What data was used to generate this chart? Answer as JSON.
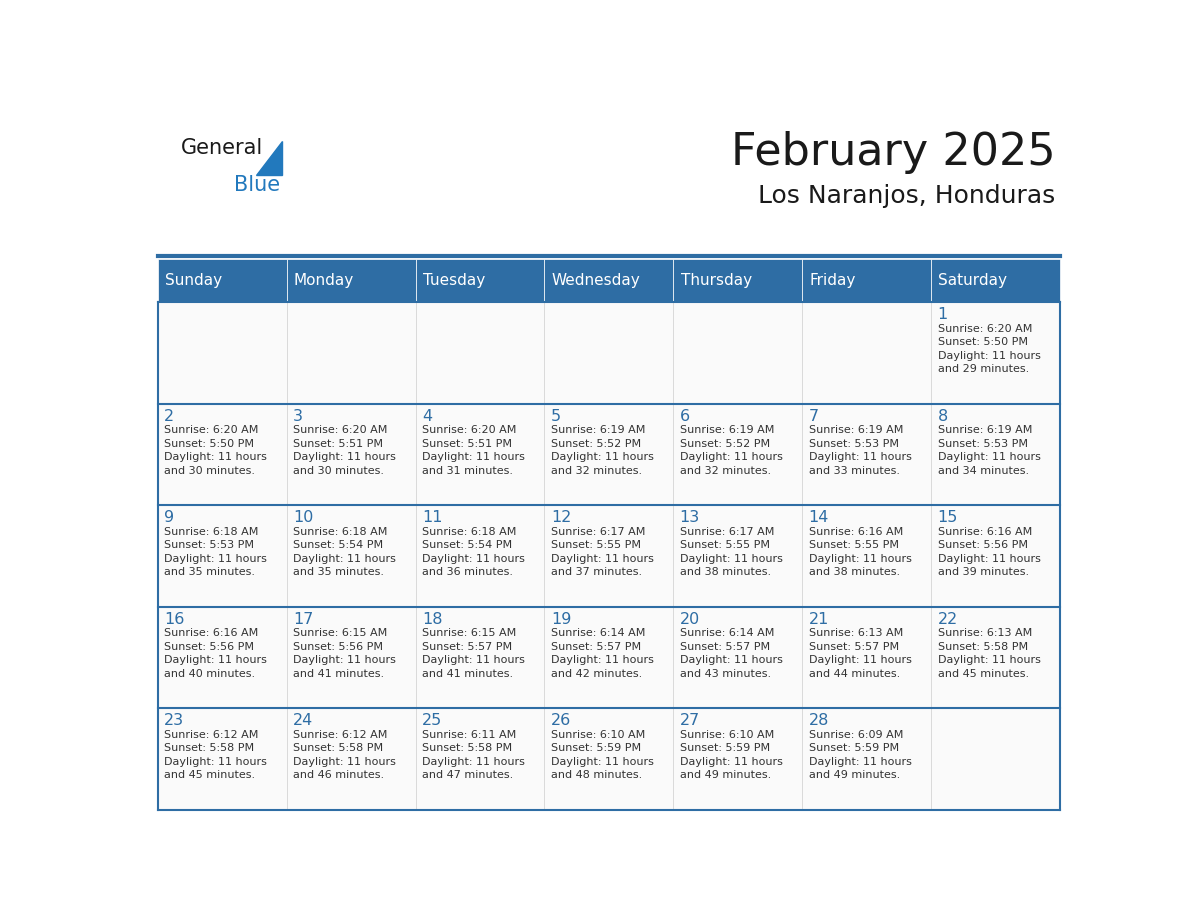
{
  "title": "February 2025",
  "subtitle": "Los Naranjos, Honduras",
  "header_bg": "#2E6DA4",
  "header_text_color": "#FFFFFF",
  "day_number_color": "#2E6DA4",
  "info_text_color": "#333333",
  "border_color": "#2E6DA4",
  "days_of_week": [
    "Sunday",
    "Monday",
    "Tuesday",
    "Wednesday",
    "Thursday",
    "Friday",
    "Saturday"
  ],
  "calendar_data": [
    [
      null,
      null,
      null,
      null,
      null,
      null,
      {
        "day": 1,
        "sunrise": "6:20 AM",
        "sunset": "5:50 PM",
        "daylight": "11 hours\nand 29 minutes."
      }
    ],
    [
      {
        "day": 2,
        "sunrise": "6:20 AM",
        "sunset": "5:50 PM",
        "daylight": "11 hours\nand 30 minutes."
      },
      {
        "day": 3,
        "sunrise": "6:20 AM",
        "sunset": "5:51 PM",
        "daylight": "11 hours\nand 30 minutes."
      },
      {
        "day": 4,
        "sunrise": "6:20 AM",
        "sunset": "5:51 PM",
        "daylight": "11 hours\nand 31 minutes."
      },
      {
        "day": 5,
        "sunrise": "6:19 AM",
        "sunset": "5:52 PM",
        "daylight": "11 hours\nand 32 minutes."
      },
      {
        "day": 6,
        "sunrise": "6:19 AM",
        "sunset": "5:52 PM",
        "daylight": "11 hours\nand 32 minutes."
      },
      {
        "day": 7,
        "sunrise": "6:19 AM",
        "sunset": "5:53 PM",
        "daylight": "11 hours\nand 33 minutes."
      },
      {
        "day": 8,
        "sunrise": "6:19 AM",
        "sunset": "5:53 PM",
        "daylight": "11 hours\nand 34 minutes."
      }
    ],
    [
      {
        "day": 9,
        "sunrise": "6:18 AM",
        "sunset": "5:53 PM",
        "daylight": "11 hours\nand 35 minutes."
      },
      {
        "day": 10,
        "sunrise": "6:18 AM",
        "sunset": "5:54 PM",
        "daylight": "11 hours\nand 35 minutes."
      },
      {
        "day": 11,
        "sunrise": "6:18 AM",
        "sunset": "5:54 PM",
        "daylight": "11 hours\nand 36 minutes."
      },
      {
        "day": 12,
        "sunrise": "6:17 AM",
        "sunset": "5:55 PM",
        "daylight": "11 hours\nand 37 minutes."
      },
      {
        "day": 13,
        "sunrise": "6:17 AM",
        "sunset": "5:55 PM",
        "daylight": "11 hours\nand 38 minutes."
      },
      {
        "day": 14,
        "sunrise": "6:16 AM",
        "sunset": "5:55 PM",
        "daylight": "11 hours\nand 38 minutes."
      },
      {
        "day": 15,
        "sunrise": "6:16 AM",
        "sunset": "5:56 PM",
        "daylight": "11 hours\nand 39 minutes."
      }
    ],
    [
      {
        "day": 16,
        "sunrise": "6:16 AM",
        "sunset": "5:56 PM",
        "daylight": "11 hours\nand 40 minutes."
      },
      {
        "day": 17,
        "sunrise": "6:15 AM",
        "sunset": "5:56 PM",
        "daylight": "11 hours\nand 41 minutes."
      },
      {
        "day": 18,
        "sunrise": "6:15 AM",
        "sunset": "5:57 PM",
        "daylight": "11 hours\nand 41 minutes."
      },
      {
        "day": 19,
        "sunrise": "6:14 AM",
        "sunset": "5:57 PM",
        "daylight": "11 hours\nand 42 minutes."
      },
      {
        "day": 20,
        "sunrise": "6:14 AM",
        "sunset": "5:57 PM",
        "daylight": "11 hours\nand 43 minutes."
      },
      {
        "day": 21,
        "sunrise": "6:13 AM",
        "sunset": "5:57 PM",
        "daylight": "11 hours\nand 44 minutes."
      },
      {
        "day": 22,
        "sunrise": "6:13 AM",
        "sunset": "5:58 PM",
        "daylight": "11 hours\nand 45 minutes."
      }
    ],
    [
      {
        "day": 23,
        "sunrise": "6:12 AM",
        "sunset": "5:58 PM",
        "daylight": "11 hours\nand 45 minutes."
      },
      {
        "day": 24,
        "sunrise": "6:12 AM",
        "sunset": "5:58 PM",
        "daylight": "11 hours\nand 46 minutes."
      },
      {
        "day": 25,
        "sunrise": "6:11 AM",
        "sunset": "5:58 PM",
        "daylight": "11 hours\nand 47 minutes."
      },
      {
        "day": 26,
        "sunrise": "6:10 AM",
        "sunset": "5:59 PM",
        "daylight": "11 hours\nand 48 minutes."
      },
      {
        "day": 27,
        "sunrise": "6:10 AM",
        "sunset": "5:59 PM",
        "daylight": "11 hours\nand 49 minutes."
      },
      {
        "day": 28,
        "sunrise": "6:09 AM",
        "sunset": "5:59 PM",
        "daylight": "11 hours\nand 49 minutes."
      },
      null
    ]
  ],
  "logo_color_general": "#1a1a1a",
  "logo_color_blue": "#2279BD",
  "logo_triangle_color": "#2279BD"
}
